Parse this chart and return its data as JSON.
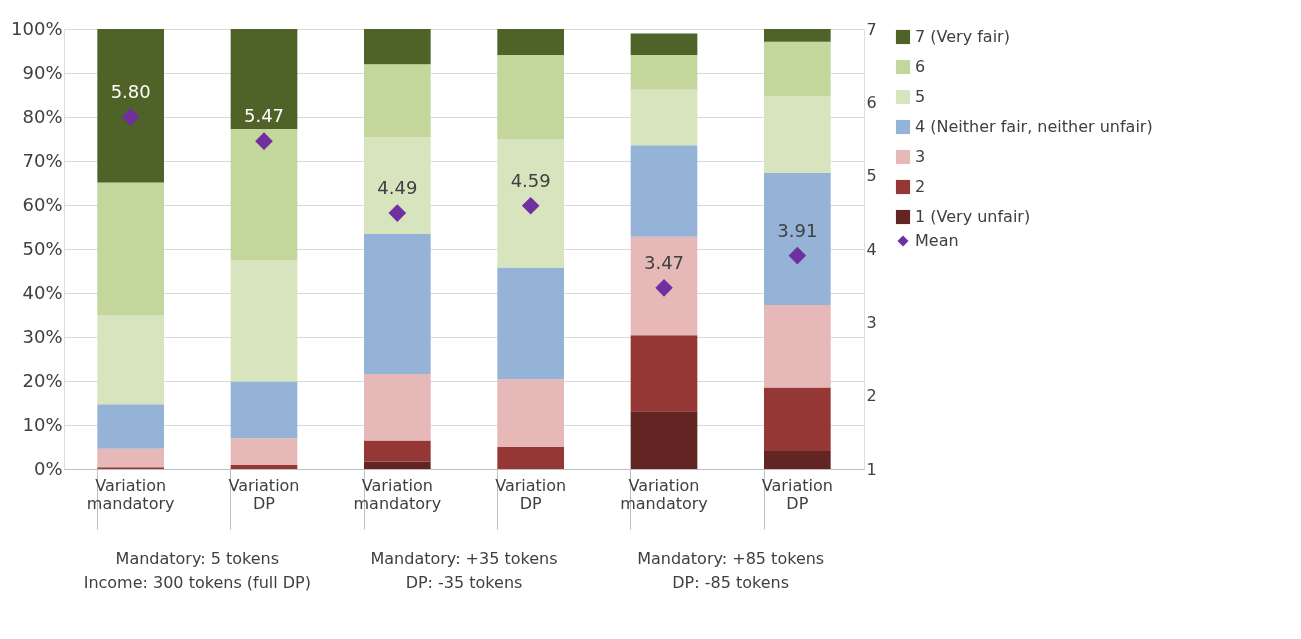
{
  "chart_data": {
    "type": "bar",
    "stacked": true,
    "categories": [
      "Variation mandatory",
      "Variation DP",
      "Variation mandatory",
      "Variation DP",
      "Variation mandatory",
      "Variation DP"
    ],
    "series": [
      {
        "name": "1 (Very unfair)",
        "color": "#632523",
        "values": [
          0,
          0,
          1.7,
          0,
          13.1,
          4.1
        ]
      },
      {
        "name": "2",
        "color": "#953735",
        "values": [
          0.4,
          0.9,
          4.8,
          5.0,
          17.3,
          14.4
        ]
      },
      {
        "name": "3",
        "color": "#e6b9b8",
        "values": [
          4.2,
          6.1,
          15.1,
          15.4,
          22.4,
          18.8
        ]
      },
      {
        "name": "4 (Neither fair, neither unfair)",
        "color": "#95b3d7",
        "values": [
          10.1,
          12.9,
          31.8,
          25.4,
          20.8,
          30.0
        ]
      },
      {
        "name": "5",
        "color": "#d7e4bd",
        "values": [
          20.2,
          27.6,
          22.0,
          29.1,
          12.6,
          17.4
        ]
      },
      {
        "name": "6",
        "color": "#c3d69b",
        "values": [
          30.2,
          29.8,
          16.6,
          19.2,
          7.9,
          12.4
        ]
      },
      {
        "name": "7 (Very fair)",
        "color": "#4f6228",
        "values": [
          34.9,
          22.7,
          8.0,
          5.9,
          4.9,
          2.9
        ]
      },
      {
        "name": "Mean",
        "type": "scatter",
        "axis": "y2",
        "marker": "diamond",
        "color": "#7030a0",
        "values": [
          5.8,
          5.47,
          4.49,
          4.59,
          3.47,
          3.91
        ],
        "value_labels": [
          "5.80",
          "5.47",
          "4.49",
          "4.59",
          "3.47",
          "3.91"
        ]
      }
    ],
    "ylim": [
      0,
      100
    ],
    "yticks": [
      {
        "value": 0,
        "label": "0%"
      },
      {
        "value": 10,
        "label": "10%"
      },
      {
        "value": 20,
        "label": "20%"
      },
      {
        "value": 30,
        "label": "30%"
      },
      {
        "value": 40,
        "label": "40%"
      },
      {
        "value": 50,
        "label": "50%"
      },
      {
        "value": 60,
        "label": "60%"
      },
      {
        "value": 70,
        "label": "70%"
      },
      {
        "value": 80,
        "label": "80%"
      },
      {
        "value": 90,
        "label": "90%"
      },
      {
        "value": 100,
        "label": "100%"
      }
    ],
    "y2lim": [
      1,
      7
    ],
    "y2ticks": [
      1,
      2,
      3,
      4,
      5,
      6,
      7
    ],
    "grid": "y",
    "legend": "right",
    "annotations": [
      "Mandatory: 5 tokens\nIncome: 300 tokens (full DP)",
      "Mandatory: +35 tokens\nDP: -35 tokens",
      "Mandatory: +85 tokens\nDP: -85 tokens"
    ]
  }
}
